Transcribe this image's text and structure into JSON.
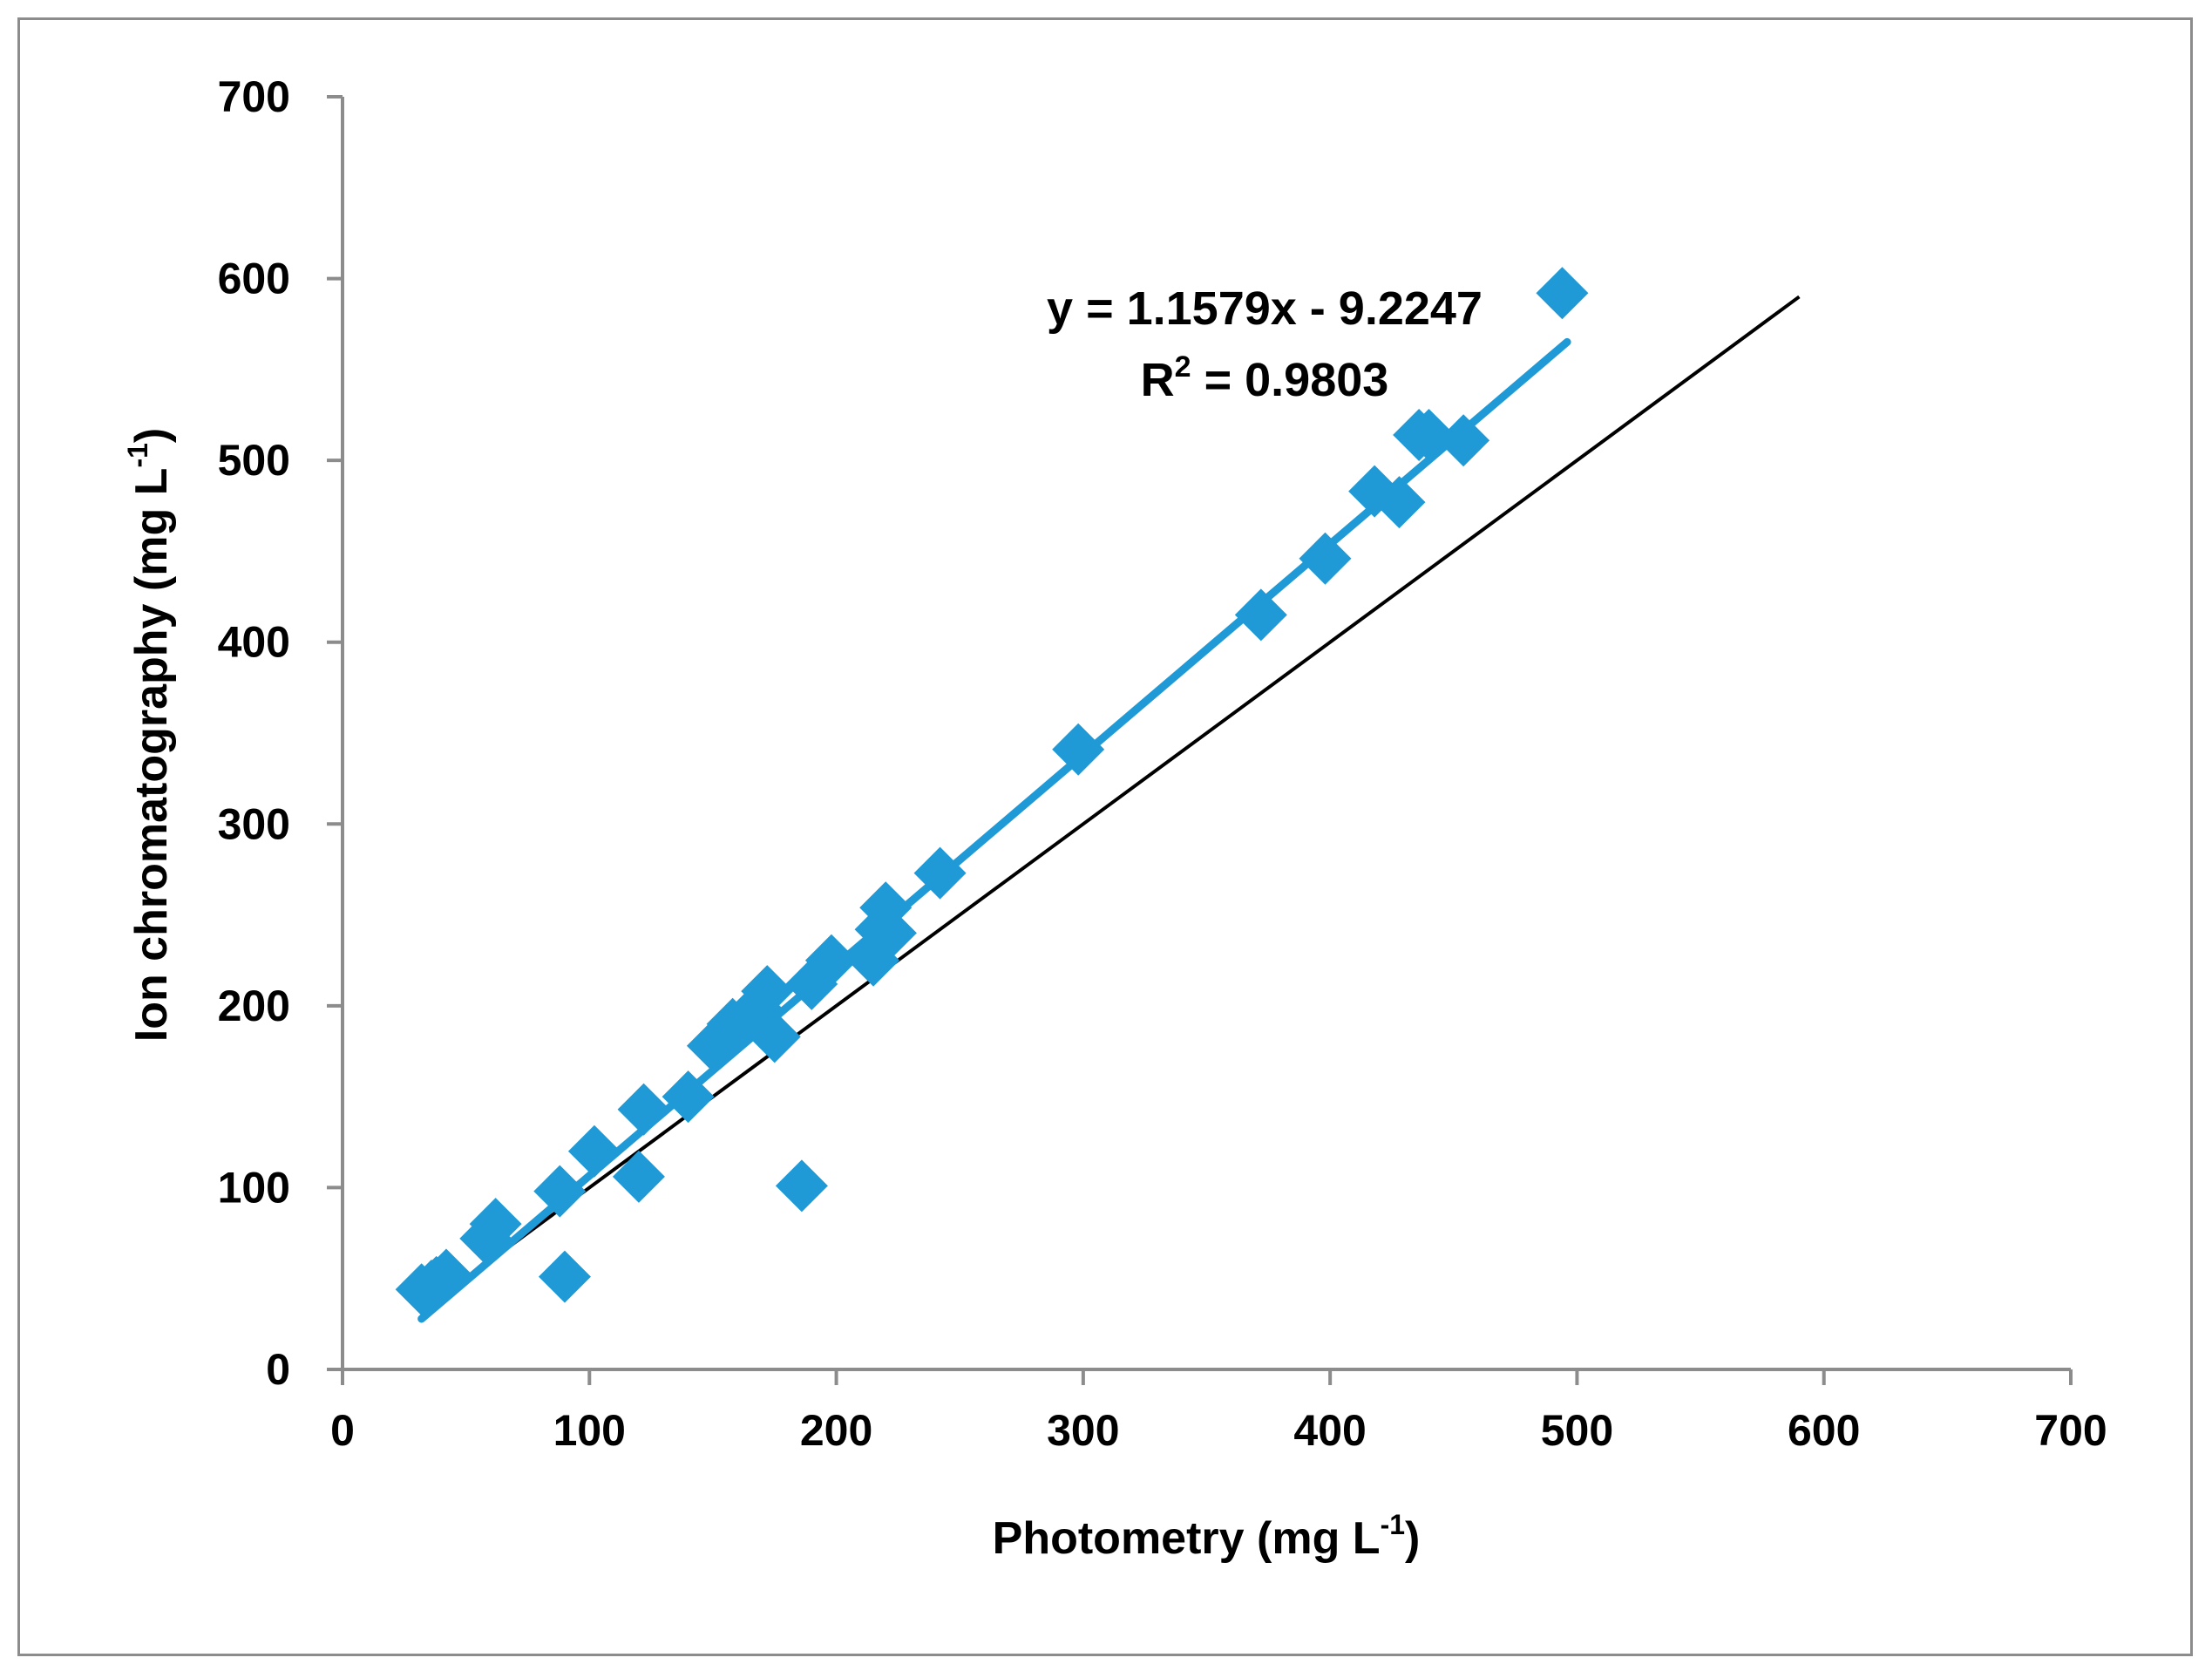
{
  "chart_data": {
    "type": "scatter",
    "title": "",
    "xlabel": {
      "main": "Photometry (mg L",
      "sup": "-1",
      "end": ")"
    },
    "ylabel": {
      "main": "Ion chromatography (mg L",
      "sup": "-1",
      "end": ")"
    },
    "xlim": [
      0,
      700
    ],
    "ylim": [
      0,
      700
    ],
    "xticks": [
      "0",
      "100",
      "200",
      "300",
      "400",
      "500",
      "600",
      "700"
    ],
    "yticks": [
      "0",
      "100",
      "200",
      "300",
      "400",
      "500",
      "600",
      "700"
    ],
    "grid": false,
    "marker": "diamond",
    "series_color": "#1f9ad6",
    "reference_line_color": "#000000",
    "points": [
      [
        32,
        44
      ],
      [
        36,
        46
      ],
      [
        38,
        48
      ],
      [
        42,
        52
      ],
      [
        58,
        72
      ],
      [
        62,
        80
      ],
      [
        88,
        98
      ],
      [
        90,
        51
      ],
      [
        102,
        120
      ],
      [
        120,
        106
      ],
      [
        122,
        143
      ],
      [
        140,
        150
      ],
      [
        150,
        178
      ],
      [
        158,
        190
      ],
      [
        164,
        194
      ],
      [
        168,
        198
      ],
      [
        172,
        208
      ],
      [
        175,
        183
      ],
      [
        186,
        101
      ],
      [
        190,
        212
      ],
      [
        198,
        225
      ],
      [
        215,
        225
      ],
      [
        218,
        242
      ],
      [
        220,
        254
      ],
      [
        222,
        240
      ],
      [
        242,
        273
      ],
      [
        298,
        341
      ],
      [
        372,
        415
      ],
      [
        398,
        446
      ],
      [
        418,
        483
      ],
      [
        428,
        477
      ],
      [
        436,
        514
      ],
      [
        440,
        514
      ],
      [
        454,
        511
      ],
      [
        494,
        592
      ]
    ],
    "trendline": {
      "slope": 1.1579,
      "intercept": -9.2247,
      "x_range": [
        32,
        496
      ]
    },
    "reference_line": {
      "x_range": [
        45,
        590
      ]
    },
    "equation": "y = 1.1579x - 9.2247",
    "r2": {
      "prefix": "R",
      "sup": "2",
      "value": " = 0.9803"
    }
  }
}
